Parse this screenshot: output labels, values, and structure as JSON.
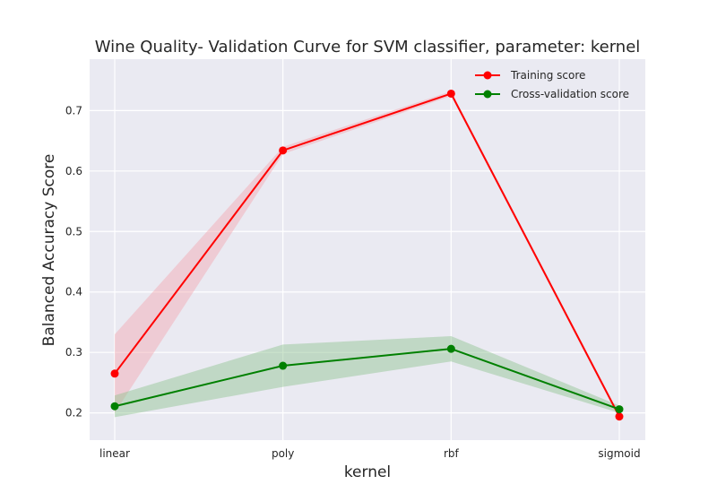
{
  "chart_data": {
    "type": "line",
    "title": "Wine Quality- Validation Curve for SVM classifier, parameter: kernel",
    "xlabel": "kernel",
    "ylabel": "Balanced Accuracy Score",
    "categories": [
      "linear",
      "poly",
      "rbf",
      "sigmoid"
    ],
    "ylim": [
      0.155,
      0.785
    ],
    "yticks": [
      0.2,
      0.3,
      0.4,
      0.5,
      0.6,
      0.7
    ],
    "ytick_labels": [
      "0.2",
      "0.3",
      "0.4",
      "0.5",
      "0.6",
      "0.7"
    ],
    "grid": true,
    "legend_position": "top-right",
    "series": [
      {
        "name": "Training score",
        "color": "#ff0000",
        "band_color": "#f4a6b0",
        "values": [
          0.265,
          0.634,
          0.728,
          0.194
        ],
        "lower": [
          0.2,
          0.628,
          0.724,
          0.19
        ],
        "upper": [
          0.33,
          0.64,
          0.732,
          0.198
        ]
      },
      {
        "name": "Cross-validation score",
        "color": "#008000",
        "band_color": "#8dc38d",
        "values": [
          0.211,
          0.278,
          0.306,
          0.206
        ],
        "lower": [
          0.193,
          0.243,
          0.285,
          0.2
        ],
        "upper": [
          0.229,
          0.313,
          0.327,
          0.212
        ]
      }
    ]
  }
}
